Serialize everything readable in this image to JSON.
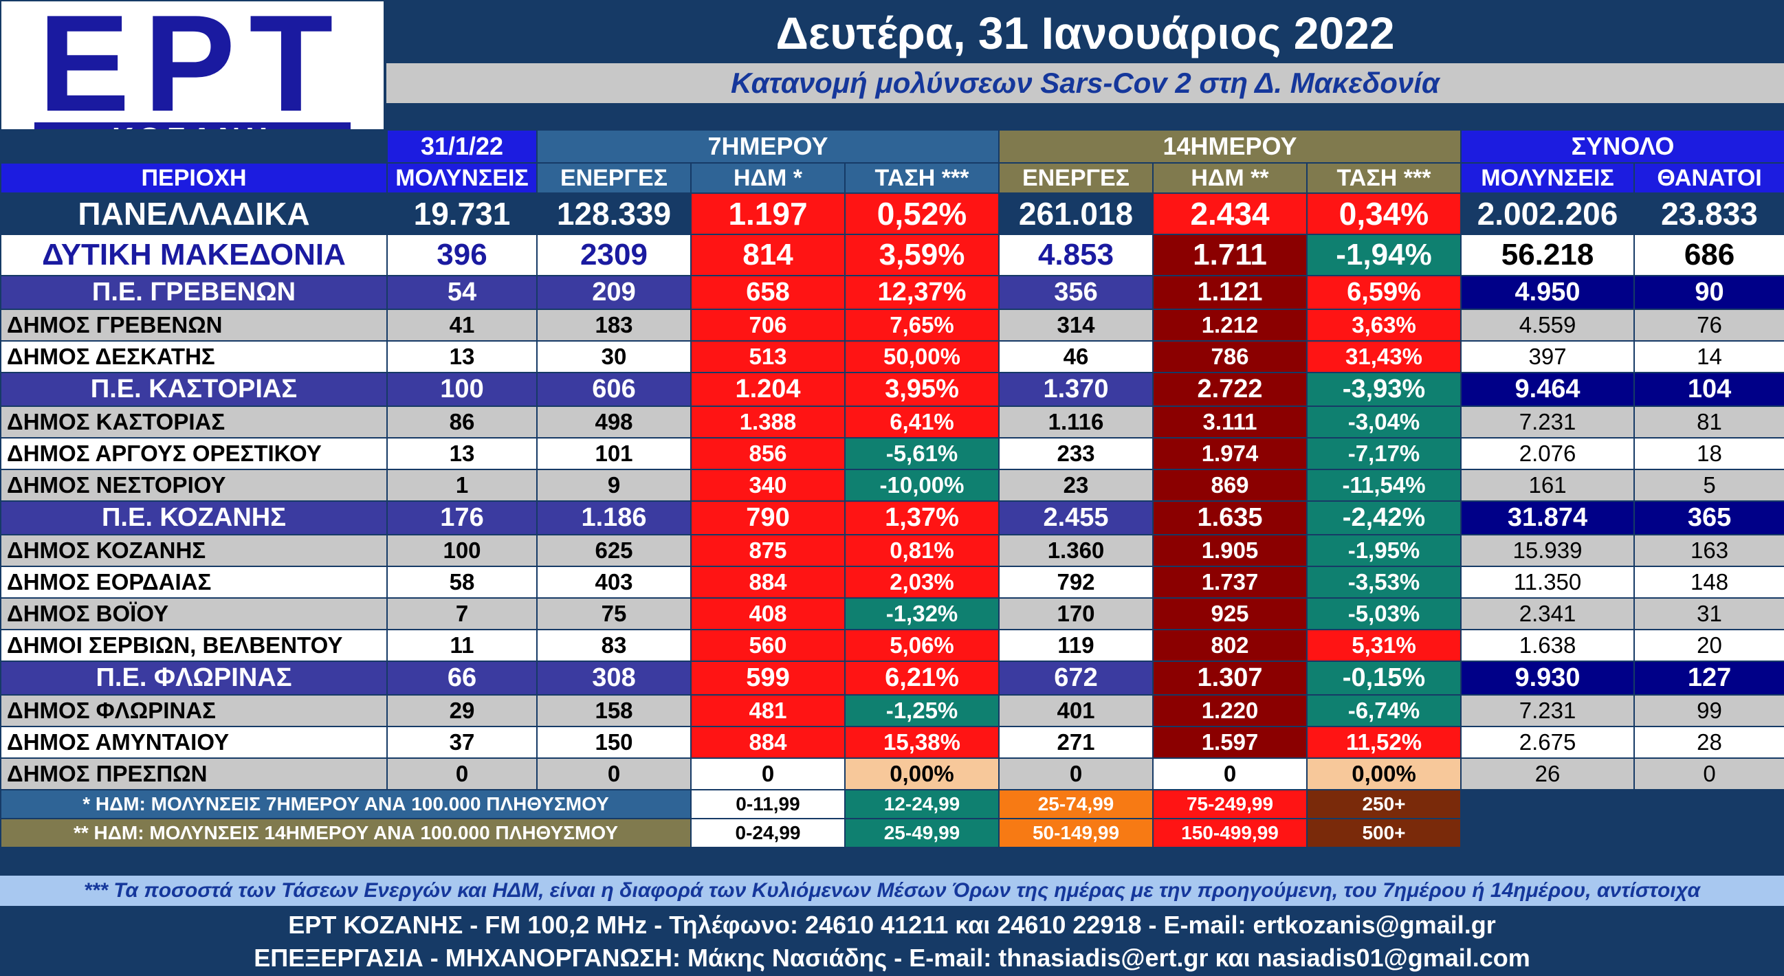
{
  "logo": {
    "main": "ΕΡΤ",
    "sub": "ΚΟΖΑΝΗ"
  },
  "header": {
    "date": "Δευτέρα, 31 Ιανουάριος 2022",
    "subtitle": "Κατανομή μολύνσεων Sars-Cov 2 στη Δ. Μακεδονία"
  },
  "groups": {
    "date": "31/1/22",
    "week": "7ΗΜΕΡΟΥ",
    "fortnight": "14ΗΜΕΡΟΥ",
    "total": "ΣΥΝΟΛΟ"
  },
  "columns": {
    "region": "ΠΕΡΙΟΧΗ",
    "infections": "ΜΟΛΥΝΣΕΙΣ",
    "active7": "ΕΝΕΡΓΕΣ",
    "idm7": "ΗΔΜ *",
    "trend7": "ΤΑΣΗ ***",
    "active14": "ΕΝΕΡΓΕΣ",
    "idm14": "ΗΔΜ **",
    "trend14": "ΤΑΣΗ ***",
    "total_infections": "ΜΟΛΥΝΣΕΙΣ",
    "deaths": "ΘΑΝΑΤΟΙ"
  },
  "rows": [
    {
      "type": "nat",
      "name": "ΠΑΝΕΛΛΑΔΙΚΑ",
      "infections": "19.731",
      "active7": "128.339",
      "idm7": "1.197",
      "trend7": "0,52%",
      "active14": "261.018",
      "idm14": "2.434",
      "trend14": "0,34%",
      "total": "2.002.206",
      "deaths": "23.833"
    },
    {
      "type": "west",
      "name": "ΔΥΤΙΚΗ ΜΑΚΕΔΟΝΙΑ",
      "infections": "396",
      "active7": "2309",
      "idm7": "814",
      "trend7": "3,59%",
      "active14": "4.853",
      "idm14": "1.711",
      "trend14": "-1,94%",
      "total": "56.218",
      "deaths": "686"
    },
    {
      "type": "pe",
      "name": "Π.Ε. ΓΡΕΒΕΝΩΝ",
      "infections": "54",
      "active7": "209",
      "idm7": "658",
      "trend7": "12,37%",
      "active14": "356",
      "idm14": "1.121",
      "trend14": "6,59%",
      "total": "4.950",
      "deaths": "90"
    },
    {
      "type": "g",
      "name": "ΔΗΜΟΣ ΓΡΕΒΕΝΩΝ",
      "infections": "41",
      "active7": "183",
      "idm7": "706",
      "trend7": "7,65%",
      "active14": "314",
      "idm14": "1.212",
      "trend14": "3,63%",
      "total": "4.559",
      "deaths": "76"
    },
    {
      "type": "w",
      "name": "ΔΗΜΟΣ ΔΕΣΚΑΤΗΣ",
      "infections": "13",
      "active7": "30",
      "idm7": "513",
      "trend7": "50,00%",
      "active14": "46",
      "idm14": "786",
      "trend14": "31,43%",
      "total": "397",
      "deaths": "14"
    },
    {
      "type": "pe",
      "name": "Π.Ε. ΚΑΣΤΟΡΙΑΣ",
      "infections": "100",
      "active7": "606",
      "idm7": "1.204",
      "trend7": "3,95%",
      "active14": "1.370",
      "idm14": "2.722",
      "trend14": "-3,93%",
      "total": "9.464",
      "deaths": "104"
    },
    {
      "type": "g",
      "name": "ΔΗΜΟΣ ΚΑΣΤΟΡΙΑΣ",
      "infections": "86",
      "active7": "498",
      "idm7": "1.388",
      "trend7": "6,41%",
      "active14": "1.116",
      "idm14": "3.111",
      "trend14": "-3,04%",
      "total": "7.231",
      "deaths": "81"
    },
    {
      "type": "w",
      "name": "ΔΗΜΟΣ ΑΡΓΟΥΣ ΟΡΕΣΤΙΚΟΥ",
      "infections": "13",
      "active7": "101",
      "idm7": "856",
      "trend7": "-5,61%",
      "active14": "233",
      "idm14": "1.974",
      "trend14": "-7,17%",
      "total": "2.076",
      "deaths": "18"
    },
    {
      "type": "g",
      "name": "ΔΗΜΟΣ ΝΕΣΤΟΡΙΟΥ",
      "infections": "1",
      "active7": "9",
      "idm7": "340",
      "trend7": "-10,00%",
      "active14": "23",
      "idm14": "869",
      "trend14": "-11,54%",
      "total": "161",
      "deaths": "5"
    },
    {
      "type": "pe",
      "name": "Π.Ε. ΚΟΖΑΝΗΣ",
      "infections": "176",
      "active7": "1.186",
      "idm7": "790",
      "trend7": "1,37%",
      "active14": "2.455",
      "idm14": "1.635",
      "trend14": "-2,42%",
      "total": "31.874",
      "deaths": "365"
    },
    {
      "type": "g",
      "name": "ΔΗΜΟΣ ΚΟΖΑΝΗΣ",
      "infections": "100",
      "active7": "625",
      "idm7": "875",
      "trend7": "0,81%",
      "active14": "1.360",
      "idm14": "1.905",
      "trend14": "-1,95%",
      "total": "15.939",
      "deaths": "163"
    },
    {
      "type": "w",
      "name": "ΔΗΜΟΣ ΕΟΡΔΑΙΑΣ",
      "infections": "58",
      "active7": "403",
      "idm7": "884",
      "trend7": "2,03%",
      "active14": "792",
      "idm14": "1.737",
      "trend14": "-3,53%",
      "total": "11.350",
      "deaths": "148"
    },
    {
      "type": "g",
      "name": "ΔΗΜΟΣ ΒΟΪΟΥ",
      "infections": "7",
      "active7": "75",
      "idm7": "408",
      "trend7": "-1,32%",
      "active14": "170",
      "idm14": "925",
      "trend14": "-5,03%",
      "total": "2.341",
      "deaths": "31"
    },
    {
      "type": "w",
      "name": "ΔΗΜΟΙ ΣΕΡΒΙΩΝ, ΒΕΛΒΕΝΤΟΥ",
      "infections": "11",
      "active7": "83",
      "idm7": "560",
      "trend7": "5,06%",
      "active14": "119",
      "idm14": "802",
      "trend14": "5,31%",
      "total": "1.638",
      "deaths": "20"
    },
    {
      "type": "pe",
      "name": "Π.Ε. ΦΛΩΡΙΝΑΣ",
      "infections": "66",
      "active7": "308",
      "idm7": "599",
      "trend7": "6,21%",
      "active14": "672",
      "idm14": "1.307",
      "trend14": "-0,15%",
      "total": "9.930",
      "deaths": "127"
    },
    {
      "type": "g",
      "name": "ΔΗΜΟΣ ΦΛΩΡΙΝΑΣ",
      "infections": "29",
      "active7": "158",
      "idm7": "481",
      "trend7": "-1,25%",
      "active14": "401",
      "idm14": "1.220",
      "trend14": "-6,74%",
      "total": "7.231",
      "deaths": "99"
    },
    {
      "type": "w",
      "name": "ΔΗΜΟΣ ΑΜΥΝΤΑΙΟΥ",
      "infections": "37",
      "active7": "150",
      "idm7": "884",
      "trend7": "15,38%",
      "active14": "271",
      "idm14": "1.597",
      "trend14": "11,52%",
      "total": "2.675",
      "deaths": "28"
    },
    {
      "type": "g",
      "name": "ΔΗΜΟΣ ΠΡΕΣΠΩΝ",
      "infections": "0",
      "active7": "0",
      "idm7": "0",
      "trend7": "0,00%",
      "active14": "0",
      "idm14": "0",
      "trend14": "0,00%",
      "total": "26",
      "deaths": "0"
    }
  ],
  "legend": {
    "row1_label": "* ΗΔΜ: ΜΟΛΥΝΣΕΙΣ 7ΗΜΕΡΟΥ ΑΝΑ 100.000 ΠΛΗΘΥΣΜΟΥ",
    "row1": [
      "0-11,99",
      "12-24,99",
      "25-74,99",
      "75-249,99",
      "250+"
    ],
    "row2_label": "** ΗΔΜ: ΜΟΛΥΝΣΕΙΣ 14ΗΜΕΡΟΥ ΑΝΑ 100.000 ΠΛΗΘΥΣΜΟΥ",
    "row2": [
      "0-24,99",
      "25-49,99",
      "50-149,99",
      "150-499,99",
      "500+"
    ]
  },
  "footnote": "*** Τα ποσοστά των Τάσεων Ενεργών και ΗΔΜ, είναι η διαφορά των Κυλιόμενων Μέσων Όρων της ημέρας με την προηγούμενη, του 7ημέρου ή 14ημέρου, αντίστοιχα",
  "footer": {
    "line1": "ΕΡΤ ΚΟΖΑΝΗΣ - FM 100,2 MHz - Τηλέφωνο:  24610 41211 και 24610 22918 - E-mail: ertkozanis@gmail.gr",
    "line2": "ΕΠΕΞΕΡΓΑΣΙΑ  -  ΜΗΧΑΝΟΡΓΑΝΩΣΗ: Μάκης Νασιάδης  -   E-mail: thnasiadis@ert.gr και nasiadis01@gmail.com"
  },
  "colors": {
    "background": "#163a66",
    "trend_up": "#ff1414",
    "trend_down": "#0f8070",
    "idm_high": "#8b0000"
  }
}
